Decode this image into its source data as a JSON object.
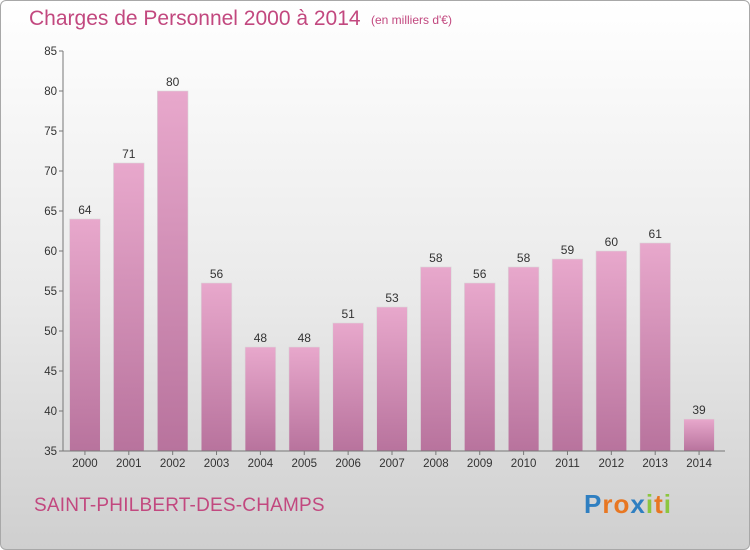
{
  "chart_data": {
    "type": "bar",
    "title": "Charges de Personnel 2000 à 2014",
    "unit_note": "(en milliers d'€)",
    "categories": [
      "2000",
      "2001",
      "2002",
      "2003",
      "2004",
      "2005",
      "2006",
      "2007",
      "2008",
      "2009",
      "2010",
      "2011",
      "2012",
      "2013",
      "2014"
    ],
    "values": [
      64,
      71,
      80,
      56,
      48,
      48,
      51,
      53,
      58,
      56,
      58,
      59,
      60,
      61,
      39
    ],
    "ylim": [
      35,
      85
    ],
    "yticks": [
      35,
      40,
      45,
      50,
      55,
      60,
      65,
      70,
      75,
      80,
      85
    ],
    "xlabel": "",
    "ylabel": "",
    "grid": false,
    "bar_color_top": "#e8a8cc",
    "bar_color_bottom": "#b8739d"
  },
  "footer": {
    "commune": "SAINT-PHILBERT-DES-CHAMPS",
    "logo_letters": [
      {
        "ch": "P",
        "color": "#2f7fc1"
      },
      {
        "ch": "r",
        "color": "#e87722"
      },
      {
        "ch": "o",
        "color": "#e87722"
      },
      {
        "ch": "x",
        "color": "#2f7fc1"
      },
      {
        "ch": "i",
        "color": "#8cc63f"
      },
      {
        "ch": "t",
        "color": "#e87722"
      },
      {
        "ch": "i",
        "color": "#8cc63f"
      }
    ]
  }
}
